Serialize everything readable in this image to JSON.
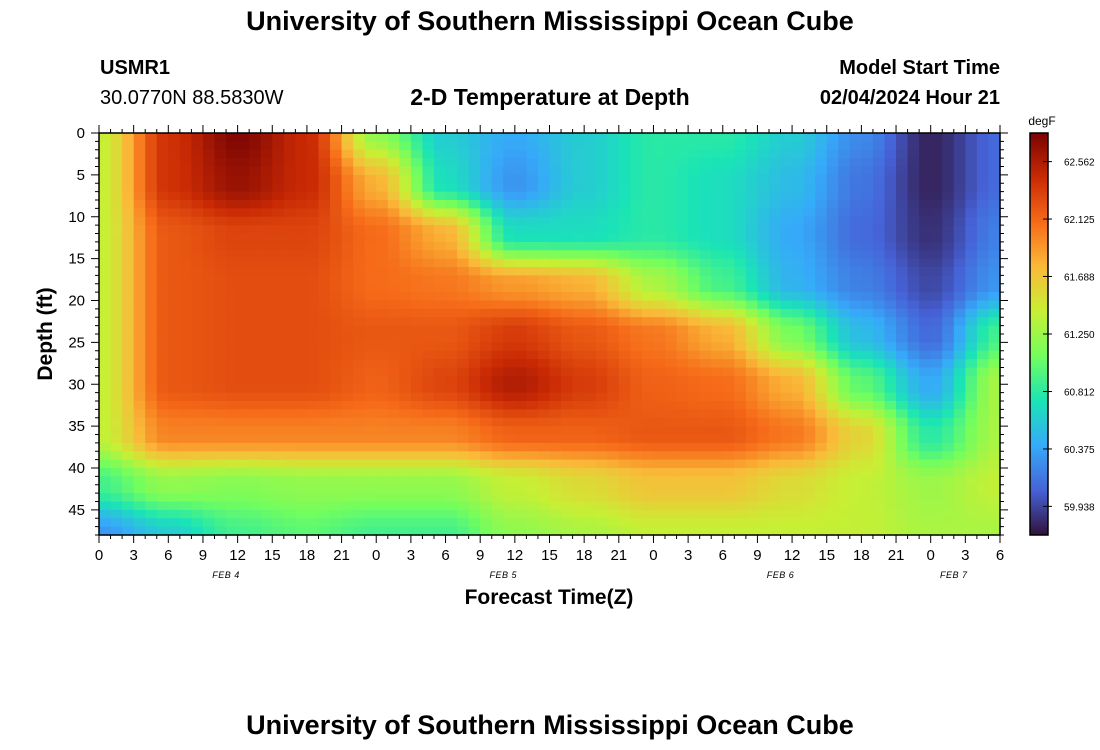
{
  "header": {
    "title": "University of Southern Mississippi Ocean Cube",
    "station_id": "USMR1",
    "coordinates": "30.0770N  88.5830W",
    "plot_title": "2-D Temperature at Depth",
    "model_start_label": "Model Start Time",
    "model_start_value": "02/04/2024 Hour 21"
  },
  "footer": {
    "title": "University of Southern Mississippi Ocean Cube"
  },
  "colorbar": {
    "unit": "degF",
    "min": 59.72,
    "max": 62.78,
    "tick_values": [
      59.938,
      60.375,
      60.812,
      61.25,
      61.688,
      62.125,
      62.562
    ],
    "tick_labels": [
      "59.938",
      "60.375",
      "60.812",
      "61.250",
      "61.688",
      "62.125",
      "62.562"
    ],
    "colors": [
      "#30123b",
      "#4662d7",
      "#36aaf9",
      "#1ae4b6",
      "#72fe5e",
      "#c8ef34",
      "#faba39",
      "#f66b19",
      "#ca2a04",
      "#7a0403"
    ]
  },
  "chart_data": {
    "type": "heatmap",
    "title": "2-D Temperature at Depth",
    "xlabel": "Forecast Time(Z)",
    "ylabel": "Depth (ft)",
    "x_unit": "forecast hours from 2024-02-04 00Z",
    "xlim": [
      0,
      78
    ],
    "ylim": [
      0,
      48
    ],
    "x_tick_values": [
      0,
      3,
      6,
      9,
      12,
      15,
      18,
      21,
      24,
      27,
      30,
      33,
      36,
      39,
      42,
      45,
      48,
      51,
      54,
      57,
      60,
      63,
      66,
      69,
      72,
      75,
      78
    ],
    "x_tick_labels": [
      "0",
      "3",
      "6",
      "9",
      "12",
      "15",
      "18",
      "21",
      "0",
      "3",
      "6",
      "9",
      "12",
      "15",
      "18",
      "21",
      "0",
      "3",
      "6",
      "9",
      "12",
      "15",
      "18",
      "21",
      "0",
      "3",
      "6"
    ],
    "date_labels": [
      {
        "label": "FEB 4",
        "x": 11
      },
      {
        "label": "FEB 5",
        "x": 35
      },
      {
        "label": "FEB 6",
        "x": 59
      },
      {
        "label": "FEB 7",
        "x": 74
      }
    ],
    "y_tick_values": [
      0,
      5,
      10,
      15,
      20,
      25,
      30,
      35,
      40,
      45
    ],
    "y_tick_labels": [
      "0",
      "5",
      "10",
      "15",
      "20",
      "25",
      "30",
      "35",
      "40",
      "45"
    ],
    "value_unit": "degF",
    "depths": [
      0,
      6,
      12,
      18,
      24,
      30,
      36,
      42,
      48
    ],
    "times": [
      0,
      6,
      12,
      18,
      24,
      30,
      36,
      42,
      48,
      54,
      60,
      66,
      72,
      78
    ],
    "values": [
      [
        61.4,
        62.4,
        62.75,
        62.45,
        61.2,
        60.6,
        60.4,
        60.6,
        60.8,
        60.8,
        60.6,
        60.25,
        59.8,
        60.1
      ],
      [
        61.4,
        62.4,
        62.65,
        62.45,
        61.8,
        60.7,
        60.3,
        60.6,
        60.8,
        60.7,
        60.5,
        60.15,
        59.8,
        60.1
      ],
      [
        61.4,
        62.2,
        62.3,
        62.3,
        62.1,
        61.8,
        60.7,
        60.7,
        60.8,
        60.7,
        60.4,
        60.1,
        59.85,
        60.2
      ],
      [
        61.4,
        62.2,
        62.25,
        62.25,
        62.1,
        62.05,
        61.9,
        61.8,
        61.3,
        60.9,
        60.45,
        60.2,
        59.95,
        60.3
      ],
      [
        61.4,
        62.2,
        62.25,
        62.25,
        62.2,
        62.2,
        62.35,
        62.2,
        62.05,
        61.8,
        61.1,
        60.5,
        60.1,
        60.9
      ],
      [
        61.4,
        62.2,
        62.25,
        62.25,
        62.15,
        62.3,
        62.55,
        62.35,
        62.15,
        62.1,
        61.8,
        61.0,
        60.4,
        61.3
      ],
      [
        61.4,
        62.0,
        62.0,
        62.0,
        62.0,
        62.0,
        62.15,
        62.15,
        62.2,
        62.2,
        62.05,
        61.6,
        60.8,
        61.3
      ],
      [
        60.9,
        61.2,
        61.15,
        61.2,
        61.2,
        61.2,
        61.4,
        61.55,
        61.7,
        61.7,
        61.55,
        61.4,
        61.25,
        61.4
      ],
      [
        60.3,
        60.6,
        60.9,
        61.0,
        60.9,
        60.9,
        61.2,
        61.3,
        61.4,
        61.4,
        61.4,
        61.4,
        61.3,
        61.3
      ]
    ]
  }
}
